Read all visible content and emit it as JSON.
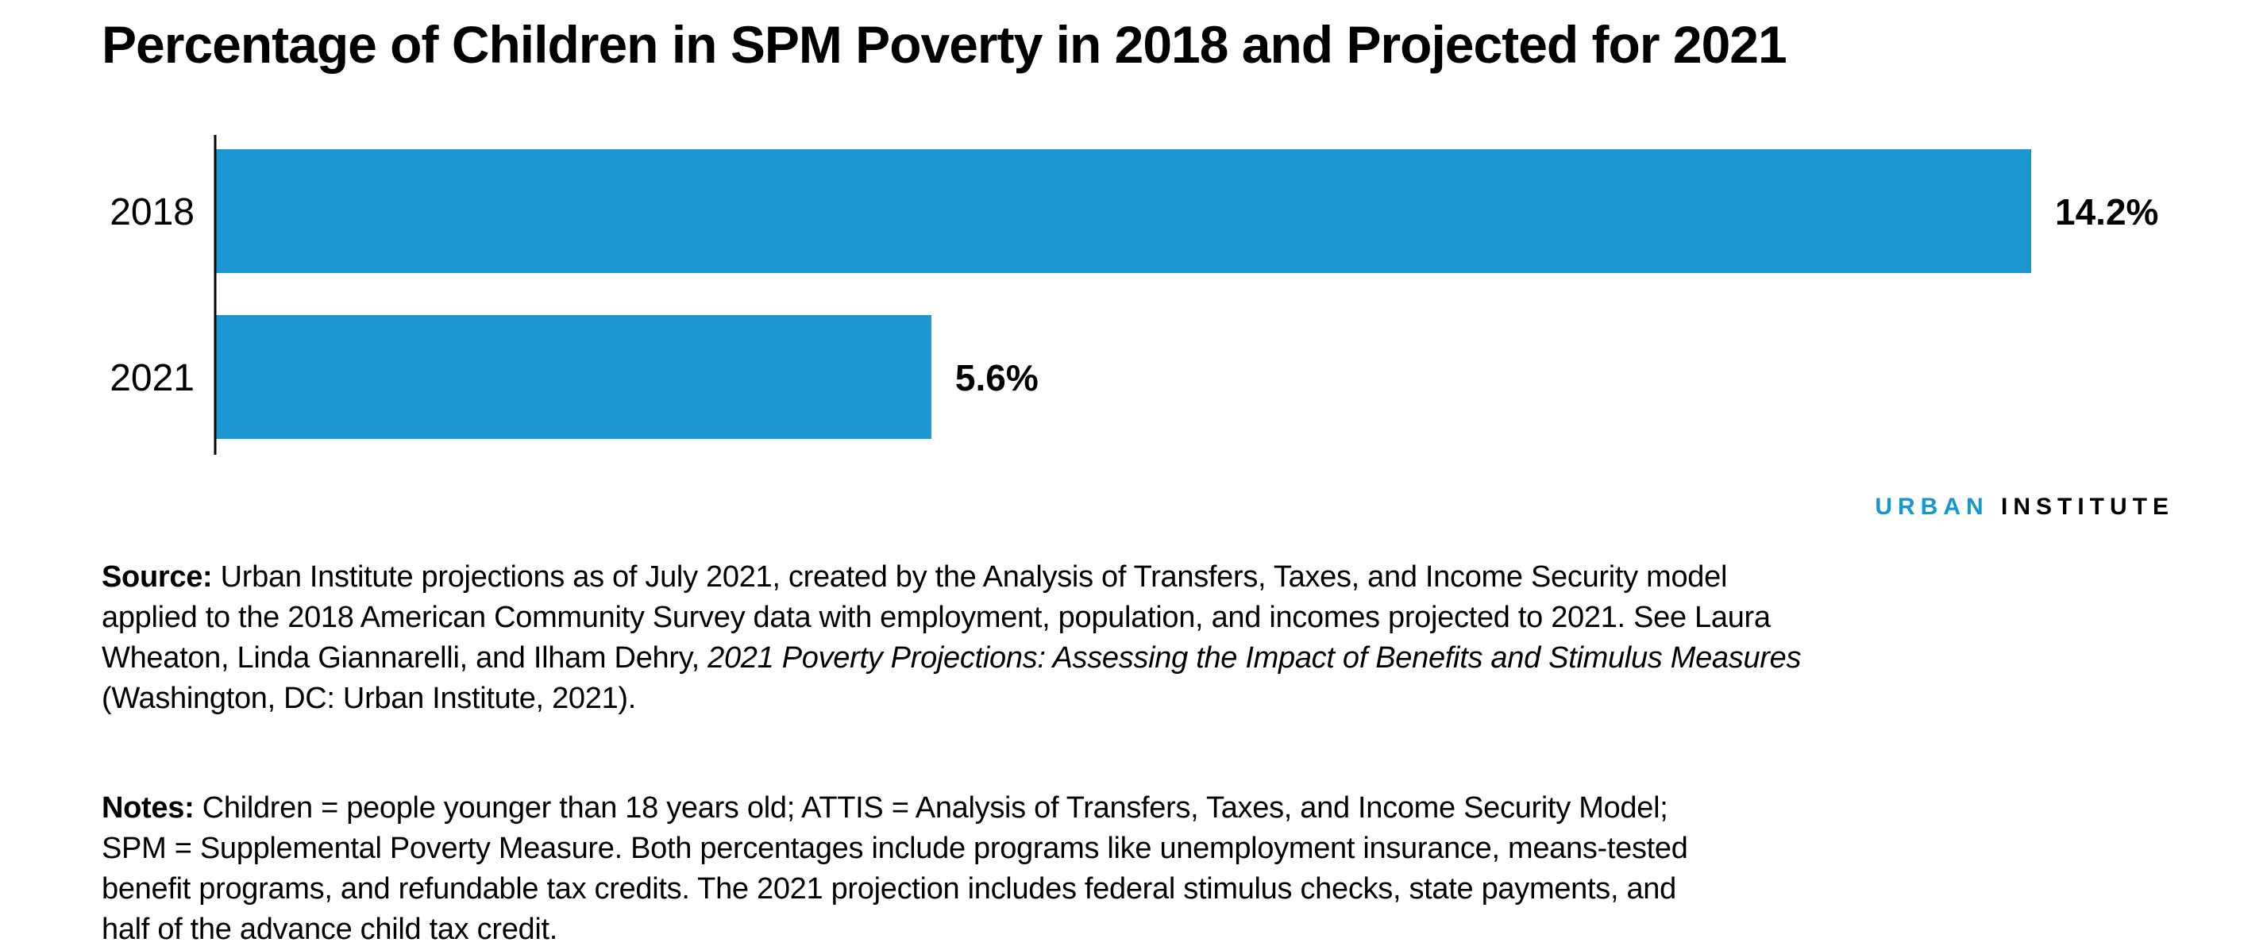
{
  "chart_data": {
    "type": "bar",
    "orientation": "horizontal",
    "title": "Percentage of Children in SPM Poverty in 2018 and Projected for 2021",
    "categories": [
      "2018",
      "2021"
    ],
    "values": [
      14.2,
      5.6
    ],
    "data_labels": [
      "14.2%",
      "5.6%"
    ],
    "xlim": [
      0,
      14.2
    ],
    "grid": false,
    "bar_color": "#1c96d1"
  },
  "logo": {
    "part1": "URBAN",
    "part2": "INSTITUTE"
  },
  "source": {
    "label": "Source:",
    "lines": [
      " Urban Institute projections as of July 2021, created by the Analysis of Transfers, Taxes, and Income Security model",
      "applied to the 2018 American Community Survey data with employment, population, and incomes projected to 2021. See Laura",
      "Wheaton, Linda Giannarelli, and Ilham Dehry, ",
      "(Washington, DC: Urban Institute, 2021)."
    ],
    "italic_title": "2021 Poverty Projections: Assessing the Impact of Benefits and Stimulus Measures"
  },
  "notes": {
    "label": "Notes:",
    "lines": [
      " Children = people younger than 18 years old; ATTIS = Analysis of Transfers, Taxes, and Income Security Model;",
      "SPM = Supplemental Poverty Measure. Both percentages include programs like unemployment insurance, means-tested",
      "benefit programs, and refundable tax credits. The 2021 projection includes federal stimulus checks, state payments, and",
      "half of the advance child tax credit."
    ]
  }
}
